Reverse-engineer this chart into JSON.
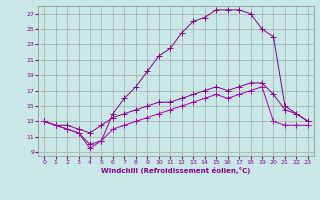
{
  "xlabel": "Windchill (Refroidissement éolien,°C)",
  "ylabel": "",
  "background_color": "#c8e8e8",
  "grid_color": "#b0d0d0",
  "line_color": "#880088",
  "xlim": [
    -0.5,
    23.5
  ],
  "ylim": [
    8.5,
    28
  ],
  "xticks": [
    0,
    1,
    2,
    3,
    4,
    5,
    6,
    7,
    8,
    9,
    10,
    11,
    12,
    13,
    14,
    15,
    16,
    17,
    18,
    19,
    20,
    21,
    22,
    23
  ],
  "yticks": [
    9,
    11,
    13,
    15,
    17,
    19,
    21,
    23,
    25,
    27
  ],
  "curve1_x": [
    0,
    1,
    2,
    3,
    4,
    5,
    6,
    7,
    8,
    9,
    10,
    11,
    12,
    13,
    14,
    15,
    16,
    17,
    18,
    19,
    20,
    21,
    22,
    23
  ],
  "curve1_y": [
    13,
    12.5,
    12.0,
    11.5,
    10.0,
    10.5,
    14.0,
    16.0,
    17.5,
    19.5,
    21.5,
    22.5,
    24.5,
    26.0,
    26.5,
    27.5,
    27.5,
    27.5,
    27.0,
    25.0,
    24.0,
    15.0,
    14.0,
    13.0
  ],
  "curve2_x": [
    0,
    1,
    2,
    3,
    4,
    5,
    6,
    7,
    8,
    9,
    10,
    11,
    12,
    13,
    14,
    15,
    16,
    17,
    18,
    19,
    20,
    21,
    22,
    23
  ],
  "curve2_y": [
    13.0,
    12.5,
    12.5,
    12.0,
    11.5,
    12.5,
    13.5,
    14.0,
    14.5,
    15.0,
    15.5,
    15.5,
    16.0,
    16.5,
    17.0,
    17.5,
    17.0,
    17.5,
    18.0,
    18.0,
    16.5,
    14.5,
    14.0,
    13.0
  ],
  "curve3_x": [
    0,
    1,
    2,
    3,
    4,
    5,
    6,
    7,
    8,
    9,
    10,
    11,
    12,
    13,
    14,
    15,
    16,
    17,
    18,
    19,
    20,
    21,
    22,
    23
  ],
  "curve3_y": [
    13.0,
    12.5,
    12.0,
    11.5,
    9.5,
    10.5,
    12.0,
    12.5,
    13.0,
    13.5,
    14.0,
    14.5,
    15.0,
    15.5,
    16.0,
    16.5,
    16.0,
    16.5,
    17.0,
    17.5,
    13.0,
    12.5,
    12.5,
    12.5
  ]
}
